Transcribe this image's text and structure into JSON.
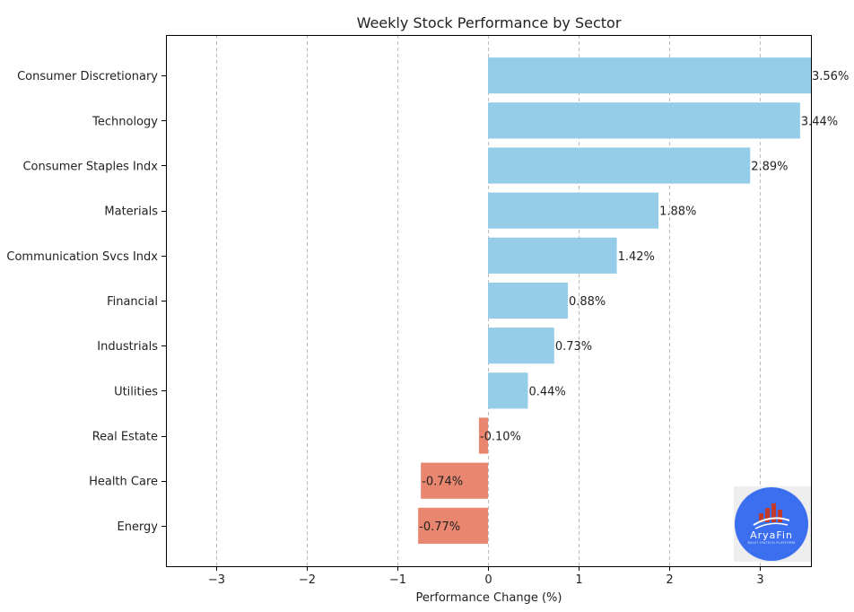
{
  "chart_data": {
    "type": "bar",
    "orientation": "horizontal",
    "title": "Weekly Stock Performance by Sector",
    "xlabel": "Performance Change (%)",
    "ylabel": "",
    "xlim": [
      -3.55,
      3.56
    ],
    "xticks": [
      -3,
      -2,
      -1,
      0,
      1,
      2,
      3
    ],
    "xtick_labels": [
      "−3",
      "−2",
      "−1",
      "0",
      "1",
      "2",
      "3"
    ],
    "grid": "vertical-dashed",
    "categories": [
      "Consumer Discretionary",
      "Technology",
      "Consumer Staples Indx",
      "Materials",
      "Communication Svcs Indx",
      "Financial",
      "Industrials",
      "Utilities",
      "Real Estate",
      "Health Care",
      "Energy"
    ],
    "values": [
      3.56,
      3.44,
      2.89,
      1.88,
      1.42,
      0.88,
      0.73,
      0.44,
      -0.1,
      -0.74,
      -0.77
    ],
    "data_labels": [
      "3.56%",
      "3.44%",
      "2.89%",
      "1.88%",
      "1.42%",
      "0.88%",
      "0.73%",
      "0.44%",
      "-0.10%",
      "-0.74%",
      "-0.77%"
    ],
    "colors": {
      "positive": "#95cde9",
      "negative": "#e8866f"
    }
  },
  "logo": {
    "text": "AryaFin",
    "subtext": "MULTI FINTECH PLATFORM",
    "background": "#3b6ff0",
    "accent": "#c0392b"
  }
}
